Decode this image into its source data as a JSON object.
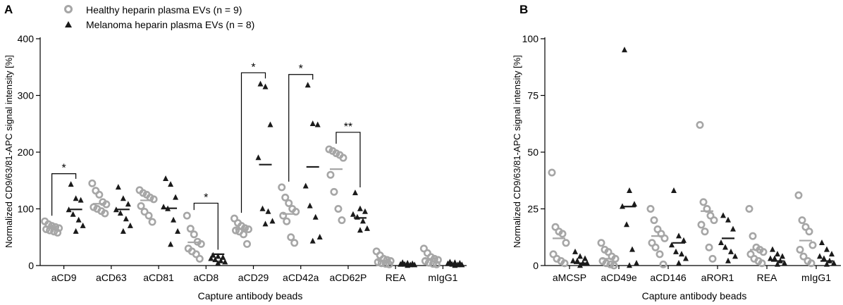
{
  "colors": {
    "healthy": "#a6a6a6",
    "melanoma": "#1a1a1a",
    "axis": "#000000"
  },
  "legend": {
    "healthy_label": "Healthy heparin plasma EVs (n = 9)",
    "melanoma_label": "Melanoma heparin plasma EVs (n = 8)"
  },
  "chart_data": [
    {
      "type": "scatter",
      "panel_label": "A",
      "ylabel": "Normalized CD9/63/81-APC signal intensity [%]",
      "xlabel": "Capture antibody beads",
      "ylim": [
        0,
        400
      ],
      "yticks": [
        0,
        100,
        200,
        300,
        400
      ],
      "categories": [
        "aCD9",
        "aCD63",
        "aCD81",
        "aCD8",
        "aCD29",
        "aCD42a",
        "aCD62P",
        "REA",
        "mIgG1"
      ],
      "series": [
        {
          "name": "Healthy heparin plasma EVs (n = 9)",
          "marker": "circle",
          "values": [
            [
              78,
              73,
              70,
              68,
              66,
              64,
              62,
              60,
              58
            ],
            [
              145,
              132,
              125,
              112,
              108,
              103,
              100,
              96,
              92
            ],
            [
              133,
              128,
              125,
              120,
              117,
              105,
              95,
              88,
              77
            ],
            [
              88,
              65,
              55,
              42,
              38,
              30,
              25,
              20,
              12
            ],
            [
              83,
              75,
              70,
              66,
              64,
              62,
              60,
              55,
              38
            ],
            [
              138,
              120,
              110,
              100,
              95,
              88,
              78,
              50,
              40
            ],
            [
              205,
              202,
              198,
              195,
              190,
              160,
              130,
              100,
              80
            ],
            [
              25,
              18,
              12,
              10,
              8,
              6,
              4,
              3,
              2
            ],
            [
              30,
              22,
              15,
              12,
              10,
              8,
              5,
              3,
              2
            ]
          ],
          "means": [
            68,
            109,
            115,
            41,
            64,
            91,
            170,
            9,
            12
          ]
        },
        {
          "name": "Melanoma heparin plasma EVs (n = 8)",
          "marker": "triangle",
          "values": [
            [
              143,
              118,
              115,
              98,
              90,
              80,
              70,
              60
            ],
            [
              138,
              118,
              108,
              98,
              92,
              82,
              70,
              60
            ],
            [
              153,
              143,
              120,
              103,
              100,
              80,
              60,
              37
            ],
            [
              18,
              16,
              14,
              12,
              10,
              8,
              6,
              4
            ],
            [
              320,
              315,
              248,
              190,
              100,
              95,
              78,
              73
            ],
            [
              318,
              250,
              248,
              140,
              105,
              85,
              50,
              43
            ],
            [
              128,
              100,
              95,
              90,
              85,
              78,
              65,
              62
            ],
            [
              5,
              4,
              3,
              2,
              2,
              1,
              1,
              0
            ],
            [
              6,
              5,
              4,
              3,
              2,
              1,
              1,
              0
            ]
          ],
          "means": [
            99,
            99,
            101,
            20,
            178,
            174,
            84,
            2,
            2
          ]
        }
      ],
      "annotations": [
        {
          "category_index": 0,
          "label": "*",
          "bracket_top": 162
        },
        {
          "category_index": 3,
          "label": "*",
          "bracket_top": 110
        },
        {
          "category_index": 4,
          "label": "*",
          "bracket_top": 340
        },
        {
          "category_index": 5,
          "label": "*",
          "bracket_top": 337
        },
        {
          "category_index": 6,
          "label": "**",
          "bracket_top": 235
        }
      ]
    },
    {
      "type": "scatter",
      "panel_label": "B",
      "ylabel": "Normalized CD9/63/81-APC signal intensity [%]",
      "xlabel": "Capture antibody beads",
      "ylim": [
        0,
        100
      ],
      "yticks": [
        0,
        25,
        50,
        75,
        100
      ],
      "categories": [
        "aMCSP",
        "aCD49e",
        "aCD146",
        "aROR1",
        "REA",
        "mIgG1"
      ],
      "series": [
        {
          "name": "Healthy heparin plasma EVs (n = 9)",
          "marker": "circle",
          "values": [
            [
              41,
              17,
              15,
              14,
              10,
              5,
              3,
              2,
              1
            ],
            [
              10,
              7,
              6,
              4,
              3,
              2,
              1,
              0.5,
              0
            ],
            [
              25,
              20,
              16,
              14,
              12,
              10,
              8,
              5,
              0.5
            ],
            [
              62,
              28,
              25,
              22,
              20,
              18,
              15,
              8,
              3
            ],
            [
              25,
              13,
              8,
              7,
              6,
              5,
              3,
              2,
              1
            ],
            [
              31,
              20,
              17,
              15,
              9,
              7,
              4,
              2,
              1
            ]
          ],
          "means": [
            12,
            3,
            13,
            24,
            7,
            11
          ]
        },
        {
          "name": "Melanoma heparin plasma EVs (n = 8)",
          "marker": "triangle",
          "values": [
            [
              6,
              4,
              3,
              2,
              2,
              1,
              1,
              0
            ],
            [
              95,
              33,
              27,
              26,
              18,
              7,
              1,
              0
            ],
            [
              33,
              13,
              11,
              9,
              6,
              5,
              3,
              1
            ],
            [
              22,
              20,
              16,
              10,
              8,
              6,
              4,
              2
            ],
            [
              7,
              5,
              4,
              3,
              3,
              2,
              1,
              0.5
            ],
            [
              10,
              7,
              5,
              4,
              3,
              2,
              1,
              0.5
            ]
          ],
          "means": [
            1,
            26,
            10,
            12,
            2,
            2
          ]
        }
      ],
      "annotations": []
    }
  ]
}
